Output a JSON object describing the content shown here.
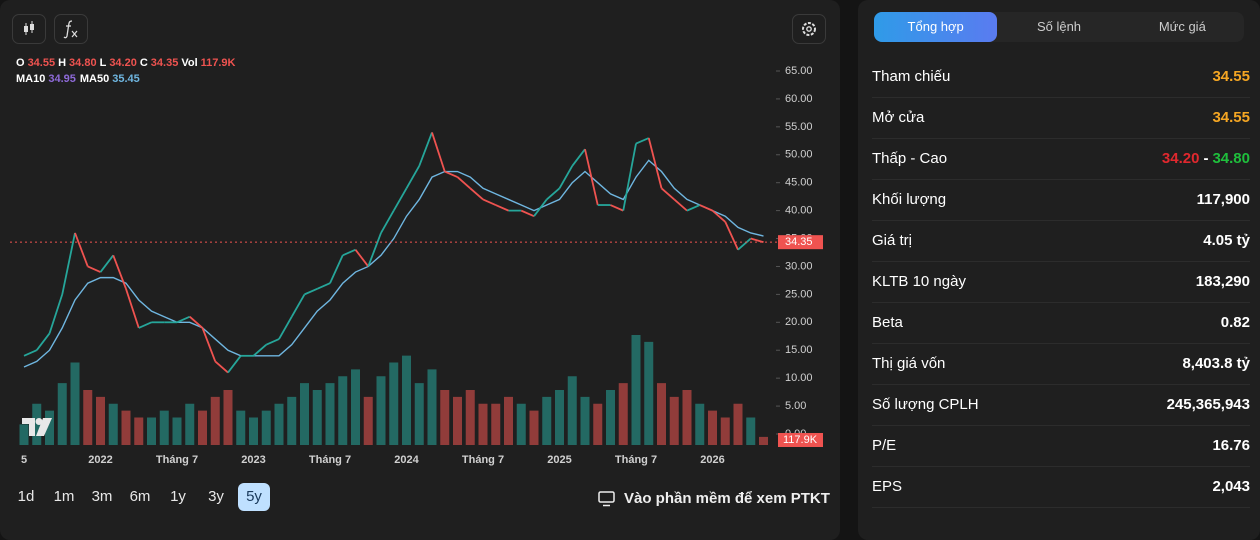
{
  "legend": {
    "ohlc": [
      {
        "label": "O",
        "value": "34.55"
      },
      {
        "label": "H",
        "value": "34.80"
      },
      {
        "label": "L",
        "value": "34.20"
      },
      {
        "label": "C",
        "value": "34.35"
      },
      {
        "label": "Vol",
        "value": "117.9K"
      }
    ],
    "indicators": [
      {
        "label": "MA10",
        "value": "34.95",
        "color": "#8e6ad8"
      },
      {
        "label": "MA50",
        "value": "35.45",
        "color": "#6fb6e0"
      }
    ]
  },
  "chart_data": {
    "type": "line",
    "categories": [
      "5",
      null,
      null,
      null,
      null,
      null,
      "2022",
      null,
      null,
      null,
      null,
      null,
      "Tháng 7",
      null,
      null,
      null,
      null,
      null,
      "2023",
      null,
      null,
      null,
      null,
      null,
      "Tháng 7",
      null,
      null,
      null,
      null,
      null,
      "2024",
      null,
      null,
      null,
      null,
      null,
      "Tháng 7",
      null,
      null,
      null,
      null,
      null,
      "2025",
      null,
      null,
      null,
      null,
      null,
      "Tháng 7",
      null,
      null,
      null,
      null,
      null,
      "2026",
      null,
      null,
      null,
      null
    ],
    "values": [
      14,
      15,
      18,
      25,
      36,
      30,
      29,
      32,
      26,
      19,
      20,
      20,
      20,
      21,
      19,
      13,
      11,
      14,
      14,
      16,
      17,
      21,
      25,
      26,
      27,
      32,
      33,
      30,
      36,
      40,
      44,
      48,
      54,
      47,
      46,
      44,
      42,
      41,
      40,
      40,
      39,
      42,
      44,
      48,
      51,
      41,
      41,
      40,
      52,
      53,
      44,
      42,
      40,
      41,
      40,
      38,
      33,
      35,
      34.35
    ],
    "up_color": "#26a69a",
    "down_color": "#ef5350",
    "series": [
      {
        "name": "MA50",
        "color": "#6fb6e0",
        "values": [
          12,
          13,
          15,
          19,
          24,
          27,
          28,
          28,
          27,
          24,
          22,
          21,
          20,
          20,
          19,
          17,
          15,
          14,
          14,
          14,
          14,
          16,
          19,
          22,
          24,
          27,
          29,
          30,
          32,
          35,
          39,
          42,
          46,
          47,
          47,
          46,
          44,
          43,
          42,
          41,
          40,
          41,
          42,
          45,
          47,
          45,
          43,
          42,
          46,
          49,
          47,
          44,
          42,
          41,
          40,
          39,
          37,
          36,
          35.45
        ]
      }
    ],
    "volume": [
      300000,
      600000,
      500000,
      900000,
      1200000,
      800000,
      700000,
      600000,
      500000,
      400000,
      400000,
      500000,
      400000,
      600000,
      500000,
      700000,
      800000,
      500000,
      400000,
      500000,
      600000,
      700000,
      900000,
      800000,
      900000,
      1000000,
      1100000,
      700000,
      1000000,
      1200000,
      1300000,
      900000,
      1100000,
      800000,
      700000,
      800000,
      600000,
      600000,
      700000,
      600000,
      500000,
      700000,
      800000,
      1000000,
      700000,
      600000,
      800000,
      900000,
      1600000,
      1500000,
      900000,
      700000,
      800000,
      600000,
      500000,
      400000,
      600000,
      400000,
      117900
    ],
    "ylim": [
      0,
      65
    ],
    "yticks": [
      {
        "value": 0,
        "label": "0.00"
      },
      {
        "value": 5,
        "label": "5.00"
      },
      {
        "value": 10,
        "label": "10.00"
      },
      {
        "value": 15,
        "label": "15.00"
      },
      {
        "value": 20,
        "label": "20.00"
      },
      {
        "value": 25,
        "label": "25.00"
      },
      {
        "value": 30,
        "label": "30.00"
      },
      {
        "value": 35,
        "label": "35.00"
      },
      {
        "value": 40,
        "label": "40.00"
      },
      {
        "value": 45,
        "label": "45.00"
      },
      {
        "value": 50,
        "label": "50.00"
      },
      {
        "value": 55,
        "label": "55.00"
      },
      {
        "value": 60,
        "label": "60.00"
      },
      {
        "value": 65,
        "label": "65.00"
      }
    ],
    "last_price": {
      "value": 34.35,
      "label": "34.35"
    },
    "last_volume_label": "117.9K"
  },
  "ranges": {
    "items": [
      "1d",
      "1m",
      "3m",
      "6m",
      "1y",
      "3y",
      "5y"
    ],
    "active": 6
  },
  "link": "Vào phần mềm để xem PTKT",
  "panel": {
    "tabs": [
      "Tổng hợp",
      "Số lệnh",
      "Mức giá"
    ],
    "active_tab": 0,
    "rows": [
      {
        "label": "Tham chiếu",
        "value": "34.55",
        "color": "#f5a623"
      },
      {
        "label": "Mở cửa",
        "value": "34.55",
        "color": "#f5a623"
      },
      {
        "label": "Thấp - Cao",
        "low": "34.20",
        "sep": "-",
        "high": "34.80",
        "low_color": "#e0282e",
        "high_color": "#1fbf3c"
      },
      {
        "label": "Khối lượng",
        "value": "117,900"
      },
      {
        "label": "Giá trị",
        "value": "4.05 tỷ"
      },
      {
        "label": "KLTB 10 ngày",
        "value": "183,290"
      },
      {
        "label": "Beta",
        "value": "0.82"
      },
      {
        "label": "Thị giá vốn",
        "value": "8,403.8 tỷ"
      },
      {
        "label": "Số lượng CPLH",
        "value": "245,365,943"
      },
      {
        "label": "P/E",
        "value": "16.76"
      },
      {
        "label": "EPS",
        "value": "2,043"
      }
    ]
  }
}
